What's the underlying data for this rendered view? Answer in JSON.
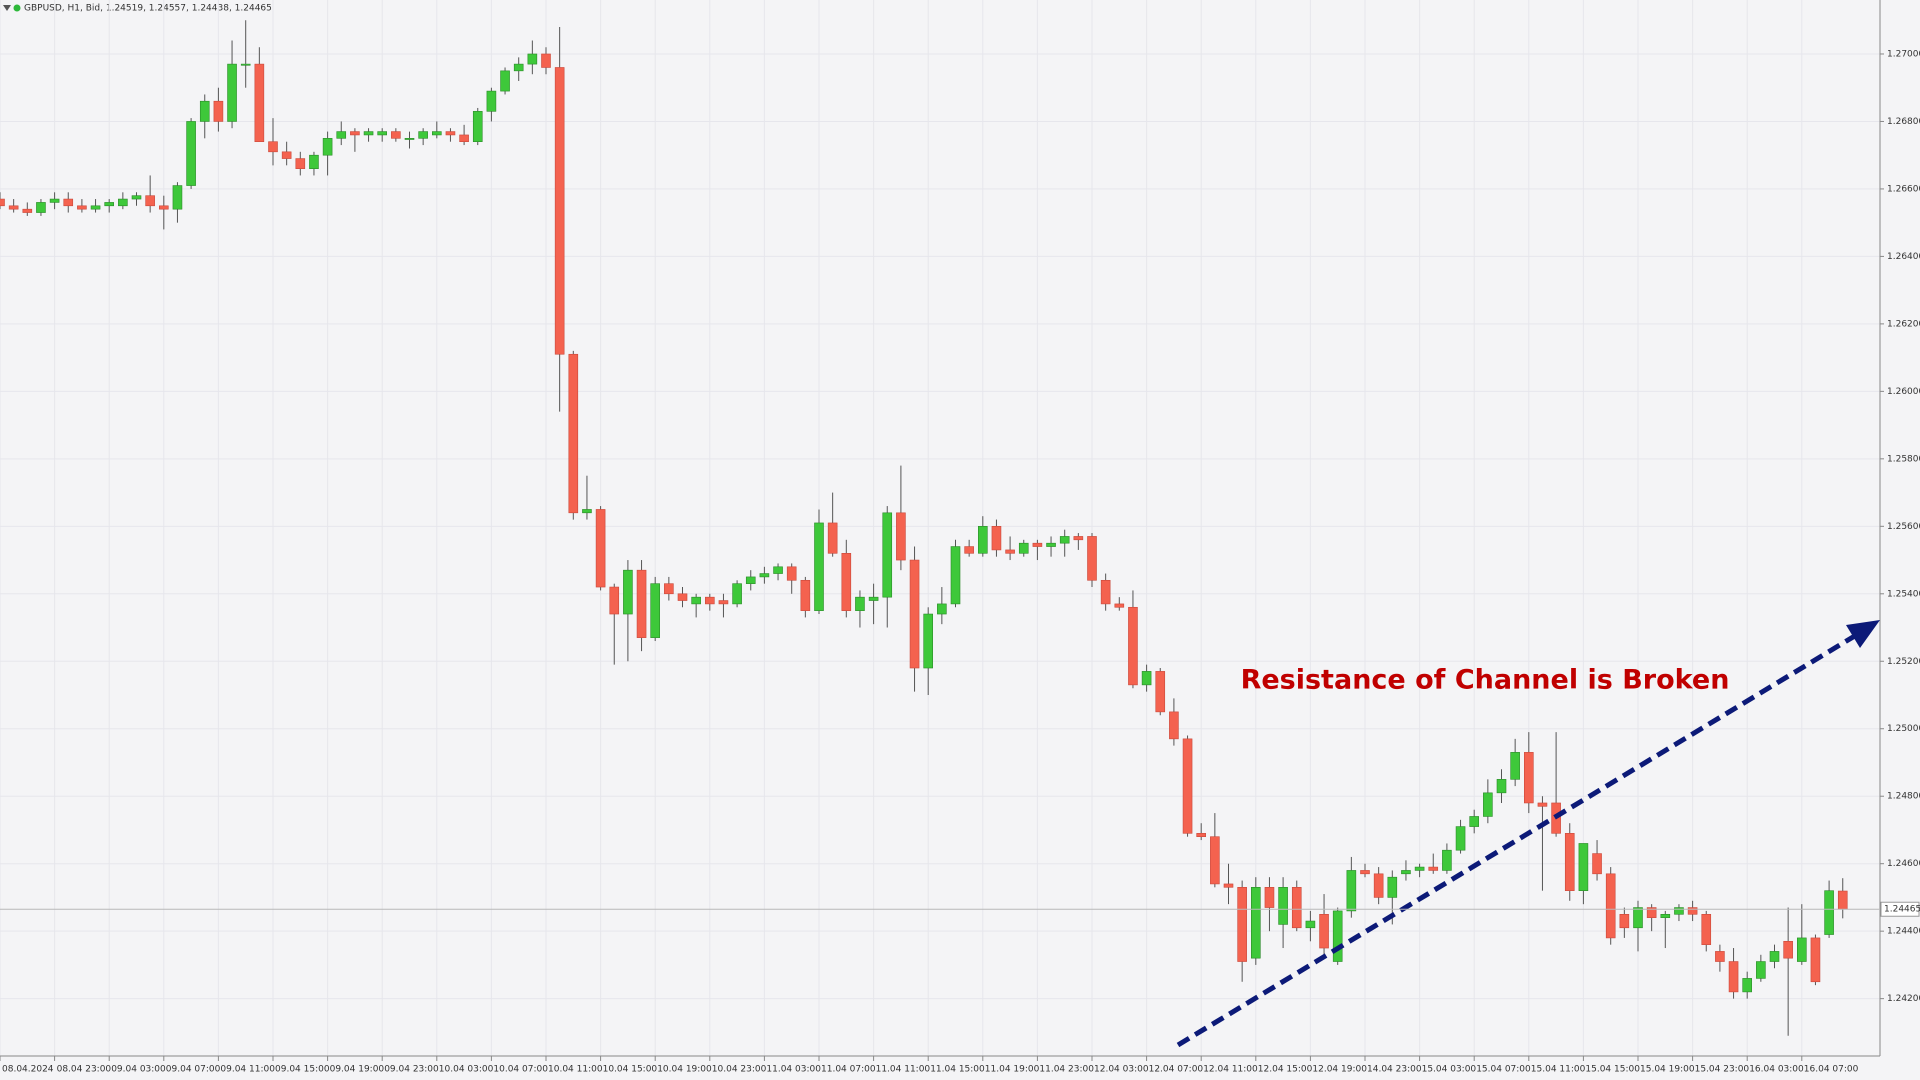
{
  "chart_data": {
    "type": "candlestick",
    "title": "GBPUSD, H1, Bid, 1.24519, 1.24557, 1.24438, 1.24465",
    "annotation": "Resistance of Channel is Broken",
    "price_line": 1.24465,
    "up_color": "#3ec83a",
    "down_color": "#f4624f",
    "grid": true,
    "ylim": [
      1.2403,
      1.2716
    ],
    "yticks": [
      {
        "value": 1.242,
        "label": "1.24200"
      },
      {
        "value": 1.244,
        "label": "1.24400"
      },
      {
        "value": 1.246,
        "label": "1.24600"
      },
      {
        "value": 1.248,
        "label": "1.24800"
      },
      {
        "value": 1.25,
        "label": "1.25000"
      },
      {
        "value": 1.252,
        "label": "1.25200"
      },
      {
        "value": 1.254,
        "label": "1.25400"
      },
      {
        "value": 1.256,
        "label": "1.25600"
      },
      {
        "value": 1.258,
        "label": "1.25800"
      },
      {
        "value": 1.26,
        "label": "1.26000"
      },
      {
        "value": 1.262,
        "label": "1.26200"
      },
      {
        "value": 1.264,
        "label": "1.26400"
      },
      {
        "value": 1.266,
        "label": "1.26600"
      },
      {
        "value": 1.268,
        "label": "1.26800"
      },
      {
        "value": 1.27,
        "label": "1.27000"
      }
    ],
    "categories": [
      "08.04.2024",
      null,
      null,
      null,
      "08.04 23:00",
      null,
      null,
      null,
      "09.04 03:00",
      null,
      null,
      null,
      "09.04 07:00",
      null,
      null,
      null,
      "09.04 11:00",
      null,
      null,
      null,
      "09.04 15:00",
      null,
      null,
      null,
      "09.04 19:00",
      null,
      null,
      null,
      "09.04 23:00",
      null,
      null,
      null,
      "10.04 03:00",
      null,
      null,
      null,
      "10.04 07:00",
      null,
      null,
      null,
      "10.04 11:00",
      null,
      null,
      null,
      "10.04 15:00",
      null,
      null,
      null,
      "10.04 19:00",
      null,
      null,
      null,
      "10.04 23:00",
      null,
      null,
      null,
      "11.04 03:00",
      null,
      null,
      null,
      "11.04 07:00",
      null,
      null,
      null,
      "11.04 11:00",
      null,
      null,
      null,
      "11.04 15:00",
      null,
      null,
      null,
      "11.04 19:00",
      null,
      null,
      null,
      "11.04 23:00",
      null,
      null,
      null,
      "12.04 03:00",
      null,
      null,
      null,
      "12.04 07:00",
      null,
      null,
      null,
      "12.04 11:00",
      null,
      null,
      null,
      "12.04 15:00",
      null,
      null,
      null,
      "12.04 19:00",
      null,
      null,
      null,
      "14.04 23:00",
      null,
      null,
      null,
      "15.04 03:00",
      null,
      null,
      null,
      "15.04 07:00",
      null,
      null,
      null,
      "15.04 11:00",
      null,
      null,
      null,
      "15.04 15:00",
      null,
      null,
      null,
      "15.04 19:00",
      null,
      null,
      null,
      "15.04 23:00",
      null,
      null,
      null,
      "16.04 03:00",
      null,
      null,
      null,
      "16.04 07:00",
      null,
      null,
      null
    ],
    "open": [
      1.2657,
      1.2655,
      1.2654,
      1.2653,
      1.2656,
      1.2657,
      1.2655,
      1.2654,
      1.2655,
      1.2655,
      1.2657,
      1.2658,
      1.2655,
      1.2654,
      1.2661,
      1.268,
      1.2686,
      1.268,
      1.2697,
      1.2697,
      1.2674,
      1.2671,
      1.2669,
      1.2666,
      1.267,
      1.2675,
      1.2677,
      1.2676,
      1.2676,
      1.2677,
      1.2675,
      1.2675,
      1.2676,
      1.2677,
      1.2676,
      1.2674,
      1.2683,
      1.2689,
      1.2695,
      1.2697,
      1.27,
      1.2696,
      1.2611,
      1.2564,
      1.2565,
      1.2542,
      1.2534,
      1.2547,
      1.2527,
      1.2543,
      1.254,
      1.2537,
      1.2539,
      1.2538,
      1.2537,
      1.2543,
      1.2545,
      1.2546,
      1.2548,
      1.2544,
      1.2535,
      1.2561,
      1.2552,
      1.2535,
      1.2538,
      1.2539,
      1.2564,
      1.255,
      1.2518,
      1.2534,
      1.2537,
      1.2554,
      1.2552,
      1.256,
      1.2553,
      1.2552,
      1.2555,
      1.2554,
      1.2555,
      1.2557,
      1.2557,
      1.2544,
      1.2537,
      1.2536,
      1.2513,
      1.2517,
      1.2505,
      1.2497,
      1.2469,
      1.2468,
      1.2454,
      1.2453,
      1.2432,
      1.2453,
      1.2442,
      1.2453,
      1.2441,
      1.2445,
      1.2431,
      1.2446,
      1.2458,
      1.2457,
      1.245,
      1.2457,
      1.2458,
      1.2459,
      1.2458,
      1.2464,
      1.2471,
      1.2474,
      1.2481,
      1.2485,
      1.2493,
      1.2478,
      1.2478,
      1.2469,
      1.2452,
      1.2463,
      1.2457,
      1.2445,
      1.2441,
      1.2447,
      1.2444,
      1.2445,
      1.2447,
      1.2445,
      1.2434,
      1.2431,
      1.2422,
      1.2426,
      1.2431,
      1.2437,
      1.2431,
      1.2438,
      1.2439,
      1.24519
    ],
    "high": [
      1.2659,
      1.2657,
      1.2656,
      1.2657,
      1.2659,
      1.2659,
      1.2657,
      1.2657,
      1.2657,
      1.2659,
      1.2659,
      1.2664,
      1.2658,
      1.2662,
      1.2681,
      1.2688,
      1.269,
      1.2704,
      1.271,
      1.2702,
      1.2681,
      1.2674,
      1.2671,
      1.2671,
      1.2677,
      1.268,
      1.2678,
      1.2678,
      1.2678,
      1.2678,
      1.2677,
      1.2678,
      1.268,
      1.2678,
      1.2679,
      1.2684,
      1.269,
      1.2696,
      1.2699,
      1.2704,
      1.2702,
      1.2708,
      1.2612,
      1.2575,
      1.2566,
      1.2543,
      1.255,
      1.255,
      1.2545,
      1.2545,
      1.2542,
      1.254,
      1.254,
      1.254,
      1.2544,
      1.2547,
      1.2548,
      1.2549,
      1.2549,
      1.2545,
      1.2565,
      1.257,
      1.2556,
      1.2541,
      1.2543,
      1.2566,
      1.2578,
      1.2554,
      1.2536,
      1.2542,
      1.2556,
      1.2556,
      1.2563,
      1.2562,
      1.2557,
      1.2556,
      1.2556,
      1.2557,
      1.2559,
      1.2558,
      1.2558,
      1.2546,
      1.2539,
      1.2541,
      1.2519,
      1.2518,
      1.2509,
      1.2498,
      1.2472,
      1.2475,
      1.246,
      1.2455,
      1.2456,
      1.2456,
      1.2456,
      1.2455,
      1.2446,
      1.2451,
      1.2447,
      1.2462,
      1.246,
      1.2459,
      1.2458,
      1.2461,
      1.246,
      1.2463,
      1.2466,
      1.2473,
      1.2476,
      1.2485,
      1.2488,
      1.2497,
      1.2499,
      1.248,
      1.2499,
      1.2472,
      1.2466,
      1.2467,
      1.2459,
      1.2447,
      1.2449,
      1.2448,
      1.2446,
      1.2448,
      1.2449,
      1.2446,
      1.2436,
      1.2435,
      1.2428,
      1.2433,
      1.2436,
      1.2447,
      1.2448,
      1.2439,
      1.2455,
      1.24557
    ],
    "low": [
      1.2654,
      1.2653,
      1.2652,
      1.2652,
      1.2654,
      1.2653,
      1.2653,
      1.2653,
      1.2653,
      1.2654,
      1.2655,
      1.2653,
      1.2648,
      1.265,
      1.266,
      1.2675,
      1.2677,
      1.2678,
      1.269,
      1.2676,
      1.2667,
      1.2667,
      1.2664,
      1.2664,
      1.2664,
      1.2673,
      1.2671,
      1.2674,
      1.2674,
      1.2674,
      1.2672,
      1.2673,
      1.2675,
      1.2674,
      1.2673,
      1.2673,
      1.268,
      1.2688,
      1.2692,
      1.2694,
      1.2694,
      1.2594,
      1.2562,
      1.2562,
      1.2541,
      1.2519,
      1.252,
      1.2523,
      1.2526,
      1.2538,
      1.2536,
      1.2533,
      1.2535,
      1.2533,
      1.2536,
      1.2541,
      1.2543,
      1.2544,
      1.254,
      1.2533,
      1.2534,
      1.2551,
      1.2533,
      1.253,
      1.2531,
      1.253,
      1.2547,
      1.2511,
      1.251,
      1.2531,
      1.2536,
      1.2551,
      1.2551,
      1.2551,
      1.255,
      1.2551,
      1.255,
      1.2551,
      1.2551,
      1.2553,
      1.2542,
      1.2535,
      1.2535,
      1.2512,
      1.2511,
      1.2504,
      1.2495,
      1.2468,
      1.2467,
      1.2453,
      1.2448,
      1.2425,
      1.243,
      1.244,
      1.2435,
      1.244,
      1.2437,
      1.2433,
      1.243,
      1.2444,
      1.2456,
      1.2448,
      1.2442,
      1.2455,
      1.2456,
      1.2457,
      1.2457,
      1.2463,
      1.2469,
      1.2472,
      1.2478,
      1.2483,
      1.2475,
      1.2452,
      1.2468,
      1.2449,
      1.2448,
      1.2455,
      1.2436,
      1.2438,
      1.2434,
      1.244,
      1.2435,
      1.2443,
      1.2443,
      1.2434,
      1.2428,
      1.242,
      1.242,
      1.2425,
      1.2429,
      1.2409,
      1.243,
      1.2424,
      1.2438,
      1.24438
    ],
    "close": [
      1.2655,
      1.2654,
      1.2653,
      1.2656,
      1.2657,
      1.2655,
      1.2654,
      1.2655,
      1.2656,
      1.2657,
      1.2658,
      1.2655,
      1.2654,
      1.2661,
      1.268,
      1.2686,
      1.268,
      1.2697,
      1.2697,
      1.2674,
      1.2671,
      1.2669,
      1.2666,
      1.267,
      1.2675,
      1.2677,
      1.2676,
      1.2677,
      1.2677,
      1.2675,
      1.2675,
      1.2677,
      1.2677,
      1.2676,
      1.2674,
      1.2683,
      1.2689,
      1.2695,
      1.2697,
      1.27,
      1.2696,
      1.2611,
      1.2564,
      1.2565,
      1.2542,
      1.2534,
      1.2547,
      1.2527,
      1.2543,
      1.254,
      1.2538,
      1.2539,
      1.2537,
      1.2537,
      1.2543,
      1.2545,
      1.2546,
      1.2548,
      1.2544,
      1.2535,
      1.2561,
      1.2552,
      1.2535,
      1.2539,
      1.2539,
      1.2564,
      1.255,
      1.2518,
      1.2534,
      1.2537,
      1.2554,
      1.2552,
      1.256,
      1.2553,
      1.2552,
      1.2555,
      1.2554,
      1.2555,
      1.2557,
      1.2556,
      1.2544,
      1.2537,
      1.2536,
      1.2513,
      1.2517,
      1.2505,
      1.2497,
      1.2469,
      1.2468,
      1.2454,
      1.2453,
      1.2431,
      1.2453,
      1.2447,
      1.2453,
      1.2441,
      1.2443,
      1.2435,
      1.2446,
      1.2458,
      1.2457,
      1.245,
      1.2456,
      1.2458,
      1.2459,
      1.2458,
      1.2464,
      1.2471,
      1.2474,
      1.2481,
      1.2485,
      1.2493,
      1.2478,
      1.2477,
      1.2469,
      1.2452,
      1.2466,
      1.2457,
      1.2438,
      1.2441,
      1.2447,
      1.2444,
      1.2445,
      1.2447,
      1.2445,
      1.2436,
      1.2431,
      1.2422,
      1.2426,
      1.2431,
      1.2434,
      1.2432,
      1.2438,
      1.2425,
      1.2452,
      1.24465
    ]
  }
}
